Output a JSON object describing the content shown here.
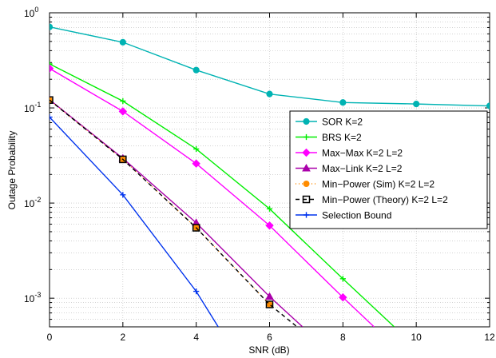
{
  "chart_data": {
    "type": "line",
    "title": "",
    "xlabel": "SNR (dB)",
    "ylabel": "Outage Probability",
    "xlim": [
      0,
      12
    ],
    "ylim": [
      0.0005,
      1
    ],
    "yscale": "log",
    "grid": true,
    "legend_position": "right",
    "x_ticks": [
      {
        "value": 0,
        "label": "0"
      },
      {
        "value": 2,
        "label": "2"
      },
      {
        "value": 4,
        "label": "4"
      },
      {
        "value": 6,
        "label": "6"
      },
      {
        "value": 8,
        "label": "8"
      },
      {
        "value": 10,
        "label": "10"
      },
      {
        "value": 12,
        "label": "12"
      }
    ],
    "y_ticks": [
      {
        "value": 1,
        "base": "10",
        "exp": "0"
      },
      {
        "value": 0.1,
        "base": "10",
        "exp": "-1"
      },
      {
        "value": 0.01,
        "base": "10",
        "exp": "-2"
      },
      {
        "value": 0.001,
        "base": "10",
        "exp": "-3"
      }
    ],
    "series": [
      {
        "name": "SOR K=2",
        "color": "#00b3b3",
        "line_style": "solid",
        "marker": "circle",
        "points": [
          [
            0,
            0.71
          ],
          [
            2,
            0.49
          ],
          [
            4,
            0.25
          ],
          [
            6,
            0.14
          ],
          [
            8,
            0.114
          ],
          [
            10,
            0.11
          ],
          [
            12,
            0.105
          ]
        ]
      },
      {
        "name": "BRS K=2",
        "color": "#00ee00",
        "line_style": "solid",
        "marker": "plus",
        "points": [
          [
            0,
            0.29
          ],
          [
            2,
            0.118
          ],
          [
            4,
            0.037
          ],
          [
            6,
            0.0087
          ],
          [
            8,
            0.0016
          ],
          [
            9.4,
            0.0005
          ]
        ]
      },
      {
        "name": "Max−Max K=2 L=2",
        "color": "#ff00ff",
        "line_style": "solid",
        "marker": "diamond",
        "points": [
          [
            0,
            0.26
          ],
          [
            2,
            0.092
          ],
          [
            4,
            0.026
          ],
          [
            6,
            0.0058
          ],
          [
            8,
            0.00102
          ],
          [
            8.85,
            0.0005
          ]
        ]
      },
      {
        "name": "Max−Link K=2 L=2",
        "color": "#aa00aa",
        "line_style": "solid",
        "marker": "triangle",
        "points": [
          [
            0,
            0.122
          ],
          [
            2,
            0.0295
          ],
          [
            4,
            0.0062
          ],
          [
            6,
            0.00104
          ],
          [
            6.9,
            0.0005
          ]
        ]
      },
      {
        "name": "Min−Power (Sim) K=2 L=2",
        "color": "#ff8c00",
        "line_style": "dotted",
        "marker": "dot",
        "points": [
          [
            0,
            0.121
          ],
          [
            2,
            0.0288
          ],
          [
            4,
            0.0055
          ],
          [
            6,
            0.00086
          ]
        ]
      },
      {
        "name": "Min−Power (Theory) K=2 L=2",
        "color": "#000000",
        "line_style": "dashed",
        "marker": "square",
        "points": [
          [
            0,
            0.121
          ],
          [
            2,
            0.0288
          ],
          [
            4,
            0.0055
          ],
          [
            6,
            0.00086
          ],
          [
            6.75,
            0.0005
          ]
        ]
      },
      {
        "name": "Selection Bound",
        "color": "#0033ee",
        "line_style": "solid",
        "marker": "plus",
        "points": [
          [
            0,
            0.08
          ],
          [
            2,
            0.0122
          ],
          [
            4,
            0.00118
          ],
          [
            4.6,
            0.0005
          ]
        ]
      }
    ]
  }
}
